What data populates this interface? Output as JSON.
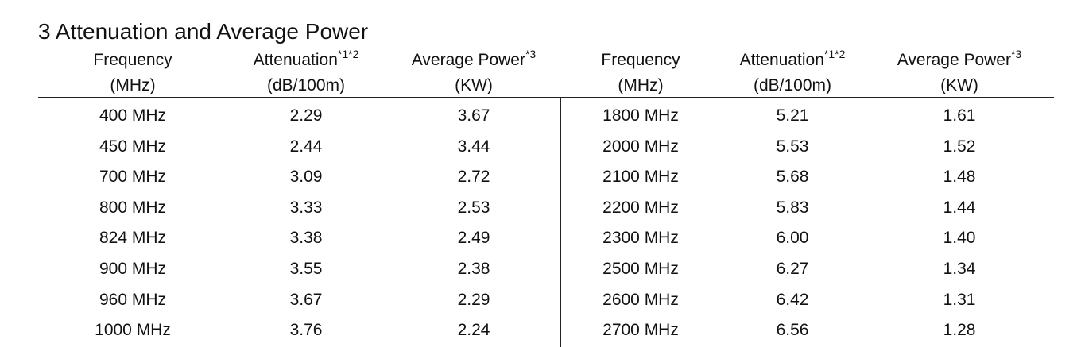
{
  "title": "3 Attenuation and Average Power",
  "table": {
    "headers": [
      {
        "label": "Frequency",
        "unit": "(MHz)"
      },
      {
        "label": "Attenuation",
        "sup": "*1*2",
        "unit": "(dB/100m)"
      },
      {
        "label": "Average Power",
        "sup": "*3",
        "unit": "(KW)"
      },
      {
        "label": "Frequency",
        "unit": "(MHz)"
      },
      {
        "label": "Attenuation",
        "sup": "*1*2",
        "unit": "(dB/100m)"
      },
      {
        "label": "Average Power",
        "sup": "*3",
        "unit": "(KW)"
      }
    ],
    "rows": [
      [
        "400 MHz",
        "2.29",
        "3.67",
        "1800 MHz",
        "5.21",
        "1.61"
      ],
      [
        "450 MHz",
        "2.44",
        "3.44",
        "2000 MHz",
        "5.53",
        "1.52"
      ],
      [
        "700 MHz",
        "3.09",
        "2.72",
        "2100 MHz",
        "5.68",
        "1.48"
      ],
      [
        "800 MHz",
        "3.33",
        "2.53",
        "2200 MHz",
        "5.83",
        "1.44"
      ],
      [
        "824 MHz",
        "3.38",
        "2.49",
        "2300 MHz",
        "6.00",
        "1.40"
      ],
      [
        "900 MHz",
        "3.55",
        "2.38",
        "2500 MHz",
        "6.27",
        "1.34"
      ],
      [
        "960 MHz",
        "3.67",
        "2.29",
        "2600 MHz",
        "6.42",
        "1.31"
      ],
      [
        "1000 MHz",
        "3.76",
        "2.24",
        "2700 MHz",
        "6.56",
        "1.28"
      ]
    ]
  }
}
